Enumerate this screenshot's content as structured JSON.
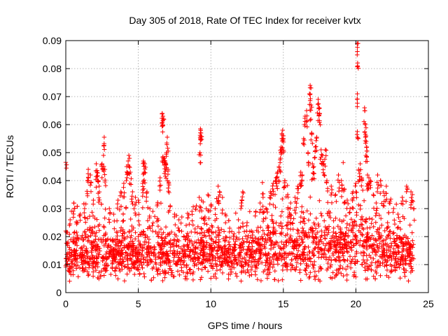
{
  "chart_data": {
    "type": "scatter",
    "title": "Day 305 of 2018, Rate Of TEC Index for receiver kvtx",
    "xlabel": "GPS time / hours",
    "ylabel": "ROTI / TECUs",
    "xlim": [
      0,
      25
    ],
    "ylim": [
      0,
      0.09
    ],
    "x_ticks": [
      "0",
      "5",
      "10",
      "15",
      "20",
      "25"
    ],
    "y_ticks": [
      "0",
      "0.01",
      "0.02",
      "0.03",
      "0.04",
      "0.05",
      "0.06",
      "0.07",
      "0.08",
      "0.09"
    ],
    "grid": true,
    "marker": "+",
    "color": "#ff0000",
    "series": [
      {
        "name": "ROTI",
        "points": [
          [
            0.0,
            0.0465
          ],
          [
            0.0,
            0.022
          ],
          [
            0.15,
            0.018
          ],
          [
            0.3,
            0.026
          ],
          [
            0.5,
            0.029
          ],
          [
            0.55,
            0.032
          ],
          [
            0.8,
            0.025
          ],
          [
            1.0,
            0.028
          ],
          [
            1.3,
            0.03
          ],
          [
            1.5,
            0.04
          ],
          [
            1.55,
            0.044
          ],
          [
            1.7,
            0.042
          ],
          [
            1.9,
            0.033
          ],
          [
            2.1,
            0.046
          ],
          [
            2.15,
            0.043
          ],
          [
            2.2,
            0.04
          ],
          [
            2.3,
            0.038
          ],
          [
            2.5,
            0.046
          ],
          [
            2.6,
            0.049
          ],
          [
            2.7,
            0.044
          ],
          [
            2.65,
            0.0555
          ],
          [
            3.0,
            0.03
          ],
          [
            3.3,
            0.028
          ],
          [
            3.6,
            0.033
          ],
          [
            3.8,
            0.036
          ],
          [
            4.0,
            0.039
          ],
          [
            4.2,
            0.045
          ],
          [
            4.3,
            0.047
          ],
          [
            4.35,
            0.049
          ],
          [
            4.45,
            0.043
          ],
          [
            4.6,
            0.036
          ],
          [
            4.8,
            0.034
          ],
          [
            5.0,
            0.033
          ],
          [
            5.3,
            0.039
          ],
          [
            5.4,
            0.043
          ],
          [
            5.35,
            0.047
          ],
          [
            5.45,
            0.046
          ],
          [
            5.6,
            0.036
          ],
          [
            5.8,
            0.03
          ],
          [
            6.0,
            0.029
          ],
          [
            6.3,
            0.031
          ],
          [
            6.5,
            0.041
          ],
          [
            6.65,
            0.064
          ],
          [
            6.7,
            0.063
          ],
          [
            6.75,
            0.062
          ],
          [
            6.7,
            0.0485
          ],
          [
            6.8,
            0.048
          ],
          [
            6.85,
            0.047
          ],
          [
            6.9,
            0.046
          ],
          [
            6.95,
            0.05
          ],
          [
            7.0,
            0.0555
          ],
          [
            7.05,
            0.044
          ],
          [
            7.1,
            0.039
          ],
          [
            7.2,
            0.031
          ],
          [
            7.5,
            0.028
          ],
          [
            7.8,
            0.026
          ],
          [
            8.0,
            0.027
          ],
          [
            8.3,
            0.024
          ],
          [
            8.7,
            0.029
          ],
          [
            9.0,
            0.031
          ],
          [
            9.2,
            0.034
          ],
          [
            9.3,
            0.058
          ],
          [
            9.32,
            0.057
          ],
          [
            9.28,
            0.0585
          ],
          [
            9.25,
            0.05
          ],
          [
            9.35,
            0.033
          ],
          [
            9.6,
            0.027
          ],
          [
            9.8,
            0.035
          ],
          [
            10.0,
            0.031
          ],
          [
            10.3,
            0.03
          ],
          [
            10.5,
            0.038
          ],
          [
            10.6,
            0.036
          ],
          [
            10.8,
            0.034
          ],
          [
            11.0,
            0.028
          ],
          [
            11.3,
            0.023
          ],
          [
            11.6,
            0.021
          ],
          [
            11.9,
            0.026
          ],
          [
            12.1,
            0.032
          ],
          [
            12.2,
            0.036
          ],
          [
            12.5,
            0.025
          ],
          [
            12.8,
            0.022
          ],
          [
            13.1,
            0.029
          ],
          [
            13.4,
            0.032
          ],
          [
            13.6,
            0.034
          ],
          [
            13.8,
            0.03
          ],
          [
            14.1,
            0.036
          ],
          [
            14.3,
            0.039
          ],
          [
            14.5,
            0.041
          ],
          [
            14.6,
            0.043
          ],
          [
            14.7,
            0.045
          ],
          [
            14.8,
            0.048
          ],
          [
            14.85,
            0.052
          ],
          [
            14.9,
            0.055
          ],
          [
            14.95,
            0.058
          ],
          [
            15.0,
            0.056
          ],
          [
            15.1,
            0.04
          ],
          [
            15.3,
            0.035
          ],
          [
            15.5,
            0.032
          ],
          [
            15.8,
            0.034
          ],
          [
            16.0,
            0.038
          ],
          [
            16.2,
            0.043
          ],
          [
            16.3,
            0.042
          ],
          [
            16.4,
            0.055
          ],
          [
            16.5,
            0.063
          ],
          [
            16.6,
            0.065
          ],
          [
            16.7,
            0.05
          ],
          [
            16.8,
            0.071
          ],
          [
            16.85,
            0.074
          ],
          [
            16.9,
            0.067
          ],
          [
            16.95,
            0.057
          ],
          [
            17.0,
            0.046
          ],
          [
            17.1,
            0.045
          ],
          [
            17.2,
            0.052
          ],
          [
            17.3,
            0.0555
          ],
          [
            17.4,
            0.069
          ],
          [
            17.45,
            0.066
          ],
          [
            17.5,
            0.064
          ],
          [
            17.6,
            0.051
          ],
          [
            17.7,
            0.049
          ],
          [
            17.8,
            0.046
          ],
          [
            17.9,
            0.051
          ],
          [
            18.0,
            0.04
          ],
          [
            18.3,
            0.038
          ],
          [
            18.6,
            0.035
          ],
          [
            18.8,
            0.042
          ],
          [
            19.0,
            0.04
          ],
          [
            19.2,
            0.037
          ],
          [
            19.4,
            0.033
          ],
          [
            19.6,
            0.03
          ],
          [
            19.8,
            0.036
          ],
          [
            20.0,
            0.039
          ],
          [
            20.1,
            0.071
          ],
          [
            20.12,
            0.082
          ],
          [
            20.15,
            0.089
          ],
          [
            20.1,
            0.0575
          ],
          [
            20.2,
            0.044
          ],
          [
            20.3,
            0.046
          ],
          [
            20.4,
            0.041
          ],
          [
            20.6,
            0.066
          ],
          [
            20.65,
            0.06
          ],
          [
            20.7,
            0.056
          ],
          [
            20.72,
            0.054
          ],
          [
            20.75,
            0.052
          ],
          [
            20.8,
            0.042
          ],
          [
            20.9,
            0.041
          ],
          [
            21.0,
            0.04
          ],
          [
            21.2,
            0.035
          ],
          [
            21.4,
            0.032
          ],
          [
            21.5,
            0.042
          ],
          [
            21.7,
            0.04
          ],
          [
            21.9,
            0.036
          ],
          [
            22.1,
            0.038
          ],
          [
            22.3,
            0.032
          ],
          [
            22.6,
            0.03
          ],
          [
            22.9,
            0.028
          ],
          [
            23.2,
            0.034
          ],
          [
            23.5,
            0.038
          ],
          [
            23.8,
            0.036
          ],
          [
            23.9,
            0.035
          ],
          [
            24.0,
            0.03
          ]
        ],
        "band": [
          [
            0,
            0.012,
            0.006
          ],
          [
            1,
            0.014,
            0.007
          ],
          [
            2,
            0.014,
            0.008
          ],
          [
            3,
            0.013,
            0.007
          ],
          [
            4,
            0.015,
            0.008
          ],
          [
            5,
            0.014,
            0.007
          ],
          [
            6,
            0.014,
            0.007
          ],
          [
            7,
            0.013,
            0.007
          ],
          [
            8,
            0.013,
            0.006
          ],
          [
            9,
            0.015,
            0.008
          ],
          [
            10,
            0.015,
            0.008
          ],
          [
            11,
            0.013,
            0.006
          ],
          [
            12,
            0.013,
            0.006
          ],
          [
            13,
            0.014,
            0.007
          ],
          [
            14,
            0.016,
            0.009
          ],
          [
            15,
            0.016,
            0.009
          ],
          [
            16,
            0.016,
            0.009
          ],
          [
            17,
            0.017,
            0.01
          ],
          [
            18,
            0.016,
            0.009
          ],
          [
            19,
            0.016,
            0.009
          ],
          [
            20,
            0.017,
            0.01
          ],
          [
            21,
            0.016,
            0.009
          ],
          [
            22,
            0.015,
            0.008
          ],
          [
            23,
            0.014,
            0.008
          ],
          [
            24,
            0.013,
            0.006
          ]
        ]
      }
    ]
  }
}
